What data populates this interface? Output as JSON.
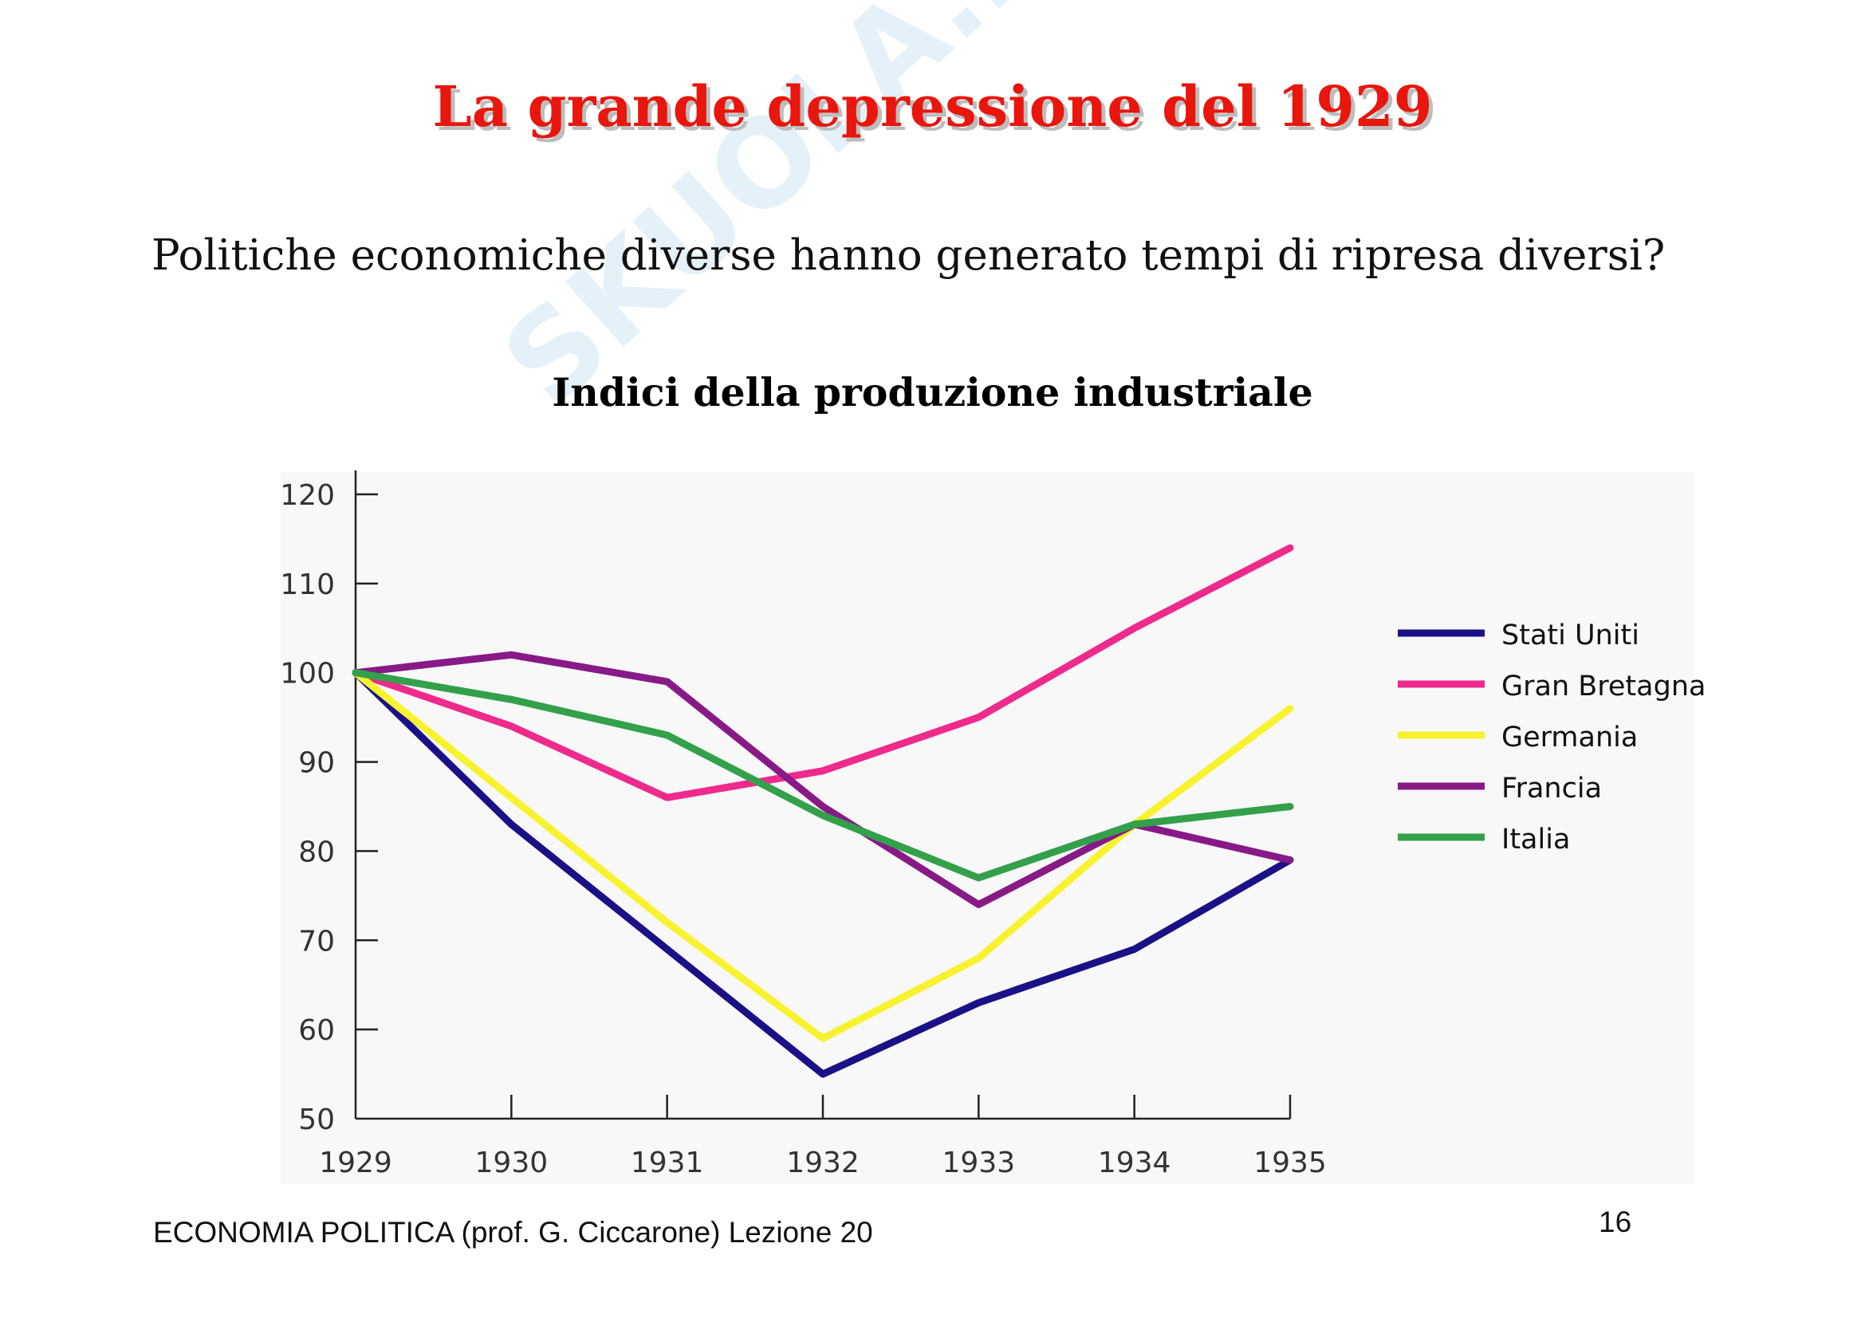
{
  "slide": {
    "title": "La grande depressione del 1929",
    "subtitle": "Politiche economiche diverse hanno generato tempi di ripresa diversi?",
    "footer": "ECONOMIA POLITICA (prof. G. Ciccarone) Lezione 20",
    "page_number": "16"
  },
  "watermark": {
    "brand": "SKUOLA.net"
  },
  "chart_data": {
    "type": "line",
    "title": "Indici della produzione industriale",
    "xlabel": "",
    "ylabel": "",
    "x": [
      "1929",
      "1930",
      "1931",
      "1932",
      "1933",
      "1934",
      "1935"
    ],
    "ylim": [
      50,
      120
    ],
    "yticks": [
      "120",
      "110",
      "100",
      "90",
      "80",
      "70",
      "60",
      "50"
    ],
    "grid": false,
    "legend_position": "right",
    "series": [
      {
        "name": "Stati Uniti",
        "color": "#1a1186",
        "values": [
          100,
          83,
          69,
          55,
          63,
          69,
          79
        ]
      },
      {
        "name": "Gran Bretagna",
        "color": "#ee2a8c",
        "values": [
          100,
          94,
          86,
          89,
          95,
          105,
          114
        ]
      },
      {
        "name": "Germania",
        "color": "#f7f230",
        "values": [
          100,
          86,
          72,
          59,
          68,
          83,
          96
        ]
      },
      {
        "name": "Francia",
        "color": "#871a86",
        "values": [
          100,
          102,
          99,
          85,
          74,
          83,
          79
        ]
      },
      {
        "name": "Italia",
        "color": "#33a04a",
        "values": [
          100,
          97,
          93,
          84,
          77,
          83,
          85
        ]
      }
    ]
  }
}
